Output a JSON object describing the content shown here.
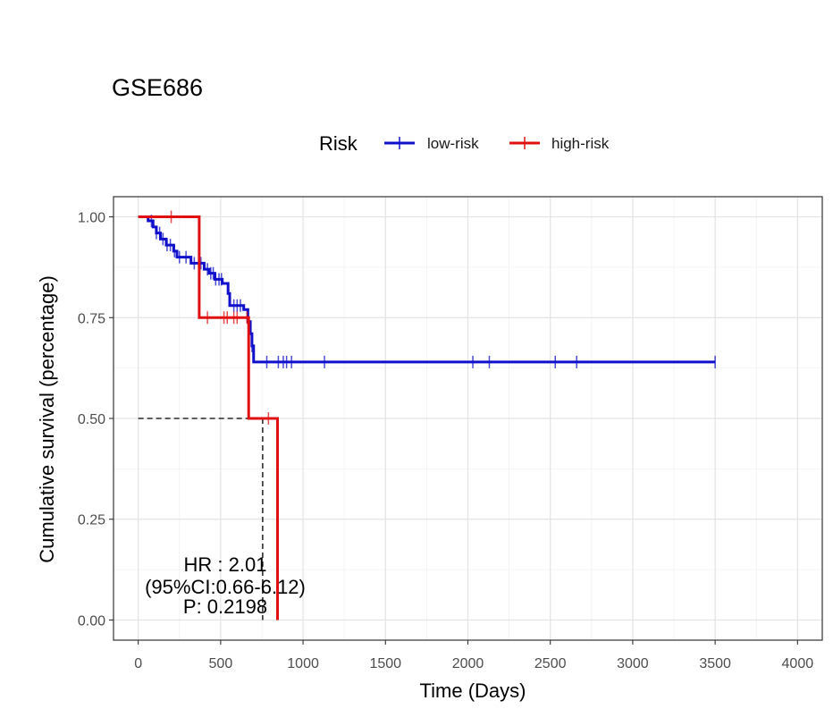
{
  "chart_data": {
    "type": "line",
    "subtype": "kaplan-meier",
    "title": "GSE686",
    "xlabel": "Time (Days)",
    "ylabel": "Cumulative survival (percentage)",
    "xlim": [
      -150,
      4150
    ],
    "ylim": [
      -0.05,
      1.05
    ],
    "x_ticks": [
      0,
      500,
      1000,
      1500,
      2000,
      2500,
      3000,
      3500,
      4000
    ],
    "y_ticks": [
      0.0,
      0.25,
      0.5,
      0.75,
      1.0
    ],
    "y_tick_labels": [
      "0.00",
      "0.25",
      "0.50",
      "0.75",
      "1.00"
    ],
    "grid": true,
    "legend": {
      "title": "Risk",
      "placement": "top",
      "entries": [
        "low-risk",
        "high-risk"
      ]
    },
    "series": [
      {
        "name": "low-risk",
        "color": "#1010cc",
        "steps": [
          [
            0,
            1.0
          ],
          [
            60,
            0.99
          ],
          [
            90,
            0.975
          ],
          [
            110,
            0.96
          ],
          [
            135,
            0.945
          ],
          [
            170,
            0.93
          ],
          [
            215,
            0.915
          ],
          [
            235,
            0.9
          ],
          [
            320,
            0.885
          ],
          [
            400,
            0.87
          ],
          [
            430,
            0.86
          ],
          [
            465,
            0.845
          ],
          [
            510,
            0.835
          ],
          [
            545,
            0.81
          ],
          [
            555,
            0.78
          ],
          [
            640,
            0.77
          ],
          [
            665,
            0.74
          ],
          [
            680,
            0.71
          ],
          [
            690,
            0.68
          ],
          [
            700,
            0.64
          ],
          [
            3500,
            0.64
          ]
        ],
        "censor_x": [
          80,
          110,
          130,
          150,
          175,
          195,
          220,
          250,
          290,
          340,
          380,
          420,
          440,
          455,
          470,
          490,
          505,
          580,
          600,
          620,
          690,
          780,
          850,
          880,
          900,
          930,
          1130,
          2030,
          2130,
          2530,
          2660,
          3500
        ]
      },
      {
        "name": "high-risk",
        "color": "#e01010",
        "steps": [
          [
            0,
            1.0
          ],
          [
            370,
            1.0
          ],
          [
            370,
            0.75
          ],
          [
            670,
            0.75
          ],
          [
            670,
            0.5
          ],
          [
            845,
            0.5
          ],
          [
            845,
            0.0
          ]
        ],
        "censor_x": [
          200,
          420,
          520,
          540,
          580,
          600,
          660,
          790
        ]
      }
    ],
    "median_lines": {
      "y": 0.5,
      "x_high": 755
    },
    "annotations": [
      "HR : 2.01",
      "(95%CI:0.66-6.12)",
      "P: 0.2198"
    ]
  }
}
